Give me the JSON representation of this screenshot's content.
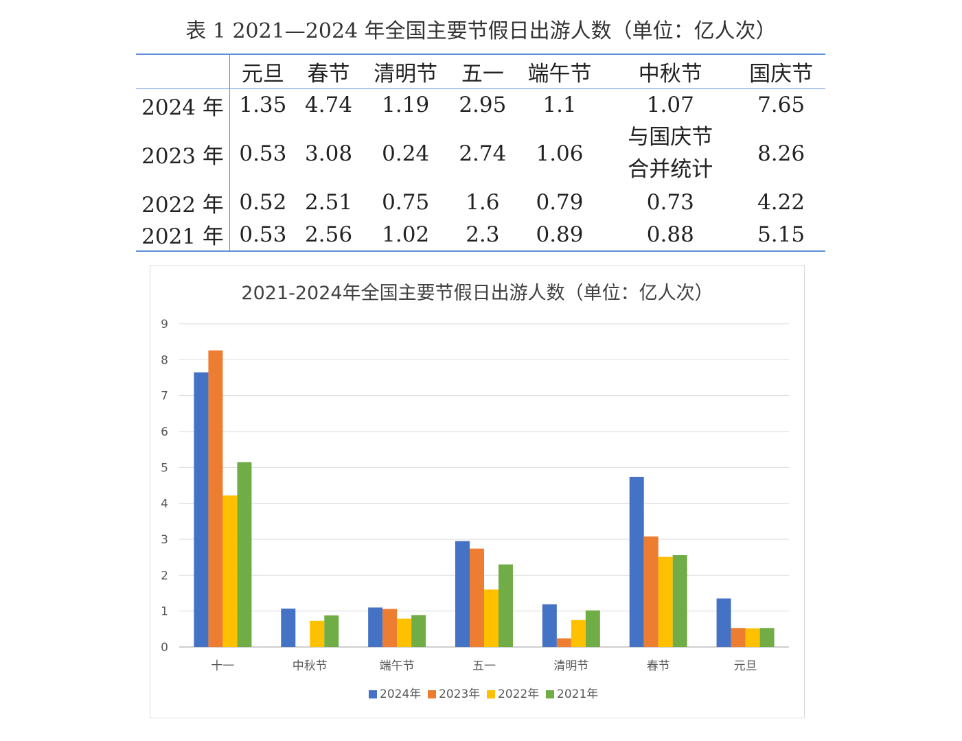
{
  "table": {
    "title": "表 1 2021—2024 年全国主要节假日出游人数（单位：亿人次）",
    "columns": [
      "元旦",
      "春节",
      "清明节",
      "五一",
      "端午节",
      "中秋节",
      "国庆节"
    ],
    "rows": [
      {
        "year": "2024 年",
        "cells": [
          "1.35",
          "4.74",
          "1.19",
          "2.95",
          "1.1",
          "1.07",
          "7.65"
        ]
      },
      {
        "year": "2023 年",
        "cells": [
          "0.53",
          "3.08",
          "0.24",
          "2.74",
          "1.06",
          "与国庆节合并统计",
          "8.26"
        ]
      },
      {
        "year": "2022 年",
        "cells": [
          "0.52",
          "2.51",
          "0.75",
          "1.6",
          "0.79",
          "0.73",
          "4.22"
        ]
      },
      {
        "year": "2021 年",
        "cells": [
          "0.53",
          "2.56",
          "1.02",
          "2.3",
          "0.89",
          "0.88",
          "5.15"
        ]
      }
    ]
  },
  "chart_data": {
    "type": "bar",
    "title": "2021-2024年全国主要节假日出游人数（单位：亿人次）",
    "categories": [
      "十一",
      "中秋节",
      "端午节",
      "五一",
      "清明节",
      "春节",
      "元旦"
    ],
    "series": [
      {
        "name": "2024年",
        "color": "#4472c4",
        "values": [
          7.65,
          1.07,
          1.1,
          2.95,
          1.19,
          4.74,
          1.35
        ]
      },
      {
        "name": "2023年",
        "color": "#ed7d31",
        "values": [
          8.26,
          0,
          1.06,
          2.74,
          0.24,
          3.08,
          0.53
        ]
      },
      {
        "name": "2022年",
        "color": "#ffc000",
        "values": [
          4.22,
          0.73,
          0.79,
          1.6,
          0.75,
          2.51,
          0.52
        ]
      },
      {
        "name": "2021年",
        "color": "#70ad47",
        "values": [
          5.15,
          0.88,
          0.89,
          2.3,
          1.02,
          2.56,
          0.53
        ]
      }
    ],
    "ylim": [
      0,
      9
    ],
    "yticks": [
      "0",
      "1",
      "2",
      "3",
      "4",
      "5",
      "6",
      "7",
      "8",
      "9"
    ],
    "grid": true,
    "legend": "bottom"
  }
}
